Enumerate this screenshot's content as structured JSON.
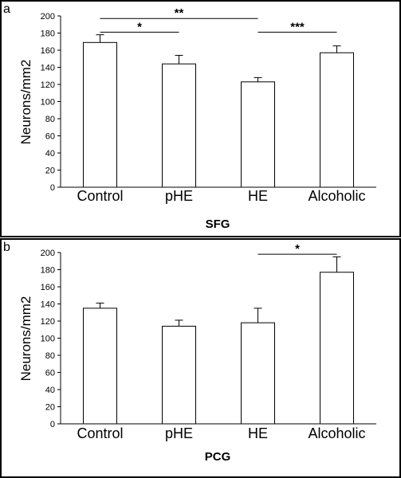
{
  "chart_data": [
    {
      "panel": "a",
      "type": "bar",
      "categories": [
        "Control",
        "pHE",
        "HE",
        "Alcoholic"
      ],
      "values": [
        169,
        144,
        123,
        157
      ],
      "errors": [
        9,
        10,
        5,
        8
      ],
      "xlabel": "SFG",
      "ylabel": "Neurons/mm2",
      "ylim": [
        0,
        200
      ],
      "yticks": [
        "0",
        "20",
        "40",
        "60",
        "80",
        "100",
        "120",
        "140",
        "160",
        "180",
        "200"
      ],
      "grid": false,
      "significance": [
        {
          "from": 0,
          "to": 1,
          "label": "*",
          "y": 181
        },
        {
          "from": 0,
          "to": 2,
          "label": "**",
          "y": 197
        },
        {
          "from": 2,
          "to": 3,
          "label": "***",
          "y": 181
        }
      ]
    },
    {
      "panel": "b",
      "type": "bar",
      "categories": [
        "Control",
        "pHE",
        "HE",
        "Alcoholic"
      ],
      "values": [
        135,
        114,
        118,
        177
      ],
      "errors": [
        6,
        7,
        17,
        18
      ],
      "xlabel": "PCG",
      "ylabel": "Neurons/mm2",
      "ylim": [
        0,
        200
      ],
      "yticks": [
        "0",
        "20",
        "40",
        "60",
        "80",
        "100",
        "120",
        "140",
        "160",
        "180",
        "200"
      ],
      "grid": false,
      "significance": [
        {
          "from": 2,
          "to": 3,
          "label": "*",
          "y": 198
        }
      ]
    }
  ]
}
